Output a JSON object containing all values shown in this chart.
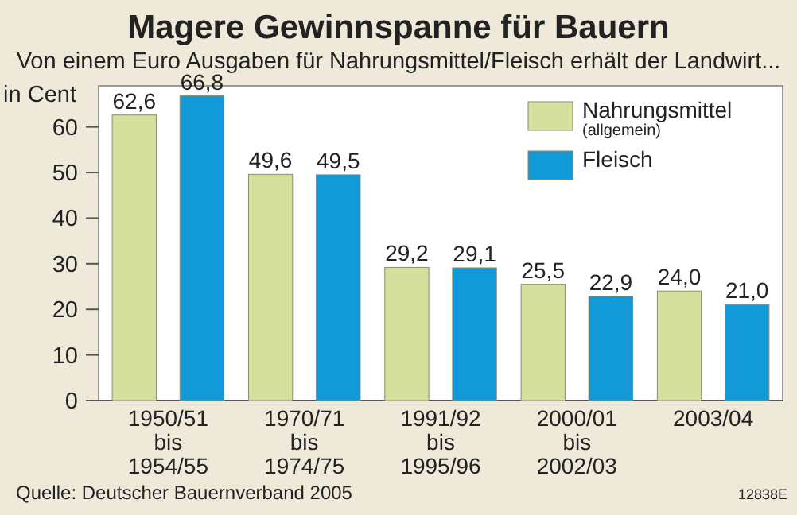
{
  "chart_data": {
    "type": "bar",
    "title": "Magere Gewinnspanne für Bauern",
    "subtitle": "Von einem Euro Ausgaben für Nahrungsmittel/Fleisch erhält der Landwirt...",
    "ylabel": "in Cent",
    "categories": [
      "1950/51\nbis\n1954/55",
      "1970/71\nbis\n1974/75",
      "1991/92\nbis\n1995/96",
      "2000/01\nbis\n2002/03",
      "2003/04"
    ],
    "series": [
      {
        "name": "Nahrungsmittel$_{(allgemein)}$",
        "color": "#d5e09c",
        "values": [
          62.6,
          49.6,
          29.2,
          25.5,
          24.0
        ],
        "value_labels": [
          "62,6",
          "49,6",
          "29,2",
          "25,5",
          "24,0"
        ]
      },
      {
        "name": "Fleisch",
        "color": "#1199d8",
        "values": [
          66.8,
          49.5,
          29.1,
          22.9,
          21.0
        ],
        "value_labels": [
          "66,8",
          "49,5",
          "29,1",
          "22,9",
          "21,0"
        ]
      }
    ],
    "ylim": [
      0,
      69
    ],
    "yticks": [
      0,
      10,
      20,
      30,
      40,
      50,
      60
    ],
    "grid": false,
    "legend": "top right",
    "annotations": [
      "Quelle: Deutscher Bauernverband 2005",
      "12838E"
    ]
  }
}
